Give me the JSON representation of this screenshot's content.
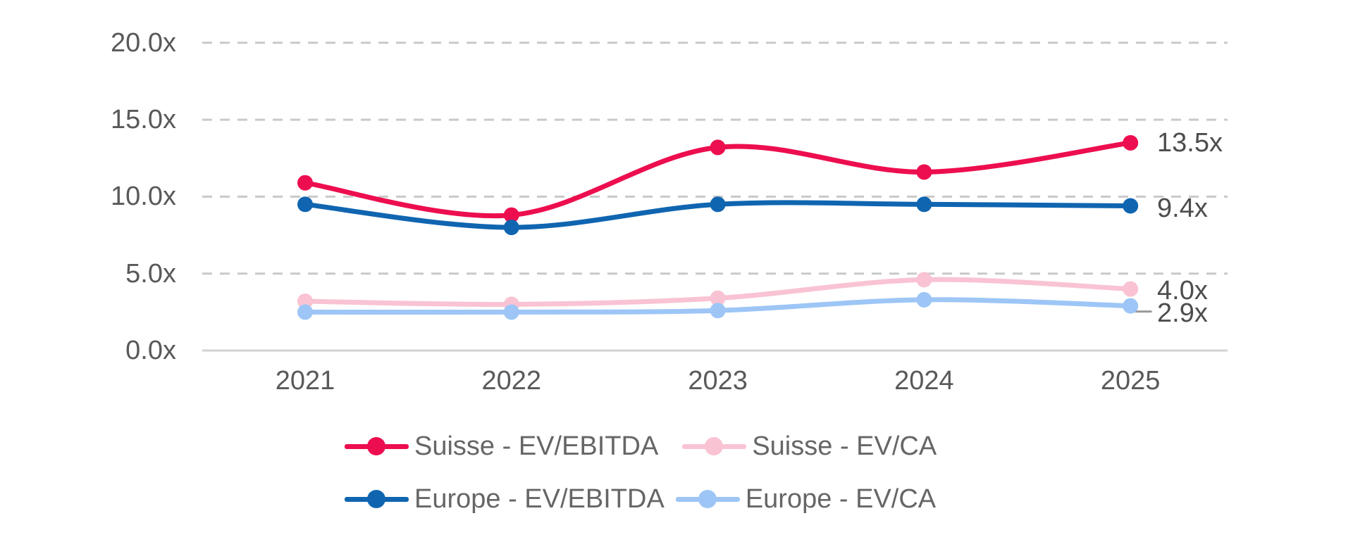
{
  "chart_data": {
    "type": "line",
    "title": "",
    "categories": [
      "2021",
      "2022",
      "2023",
      "2024",
      "2025"
    ],
    "series": [
      {
        "name": "Suisse - EV/EBITDA",
        "color": "#ED0E4F",
        "values": [
          10.9,
          8.8,
          13.2,
          11.6,
          13.5
        ],
        "end_label": "13.5x"
      },
      {
        "name": "Suisse - EV/CA",
        "color": "#F9C3D3",
        "values": [
          3.2,
          3.0,
          3.4,
          4.6,
          4.0
        ],
        "end_label": "4.0x"
      },
      {
        "name": "Europe - EV/EBITDA",
        "color": "#1065B0",
        "values": [
          9.5,
          8.0,
          9.5,
          9.5,
          9.4
        ],
        "end_label": "9.4x"
      },
      {
        "name": "Europe - EV/CA",
        "color": "#9DC6F7",
        "values": [
          2.5,
          2.5,
          2.6,
          3.3,
          2.9
        ],
        "end_label": "2.9x"
      }
    ],
    "y_ticks": [
      "20.0x",
      "15.0x",
      "10.0x",
      "5.0x",
      "0.0x"
    ],
    "y_tick_values": [
      20,
      15,
      10,
      5,
      0
    ],
    "ylim": [
      0,
      20
    ],
    "grid": {
      "horizontal": true,
      "style": "dashed",
      "color": "#C9C9C9"
    },
    "axis_line_color": "#D2D2D2",
    "leader_line_color": "#999999",
    "smooth": true,
    "marker": "circle",
    "legend_position": "bottom",
    "legend_rows": [
      [
        0,
        1
      ],
      [
        2,
        3
      ]
    ]
  }
}
